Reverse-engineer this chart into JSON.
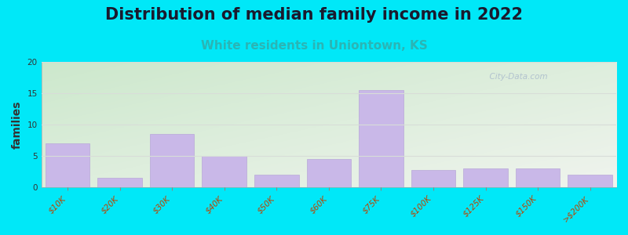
{
  "title": "Distribution of median family income in 2022",
  "subtitle": "White residents in Uniontown, KS",
  "categories": [
    "$10K",
    "$20K",
    "$30K",
    "$40K",
    "$50K",
    "$60K",
    "$75K",
    "$100K",
    "$125K",
    "$150K",
    ">$200K"
  ],
  "values": [
    7,
    1.5,
    8.5,
    5,
    2,
    4.5,
    15.5,
    2.75,
    3,
    3,
    2
  ],
  "bar_color": "#c9b8e8",
  "bar_edge_color": "#b8a8d8",
  "background_outer": "#00e8f8",
  "grad_top_color": "#cce8cc",
  "grad_bottom_color": "#f0f4ee",
  "title_fontsize": 15,
  "title_color": "#1a1a2e",
  "subtitle_fontsize": 11,
  "subtitle_color": "#2ab5b5",
  "ylabel": "families",
  "ylabel_fontsize": 10,
  "tick_label_fontsize": 7.5,
  "tick_label_color": "#bb4400",
  "ylim": [
    0,
    20
  ],
  "yticks": [
    0,
    5,
    10,
    15,
    20
  ],
  "watermark": "  City-Data.com",
  "watermark_color": "#aabbcc",
  "grid_color": "#d8ddd8",
  "bar_width": 0.85
}
